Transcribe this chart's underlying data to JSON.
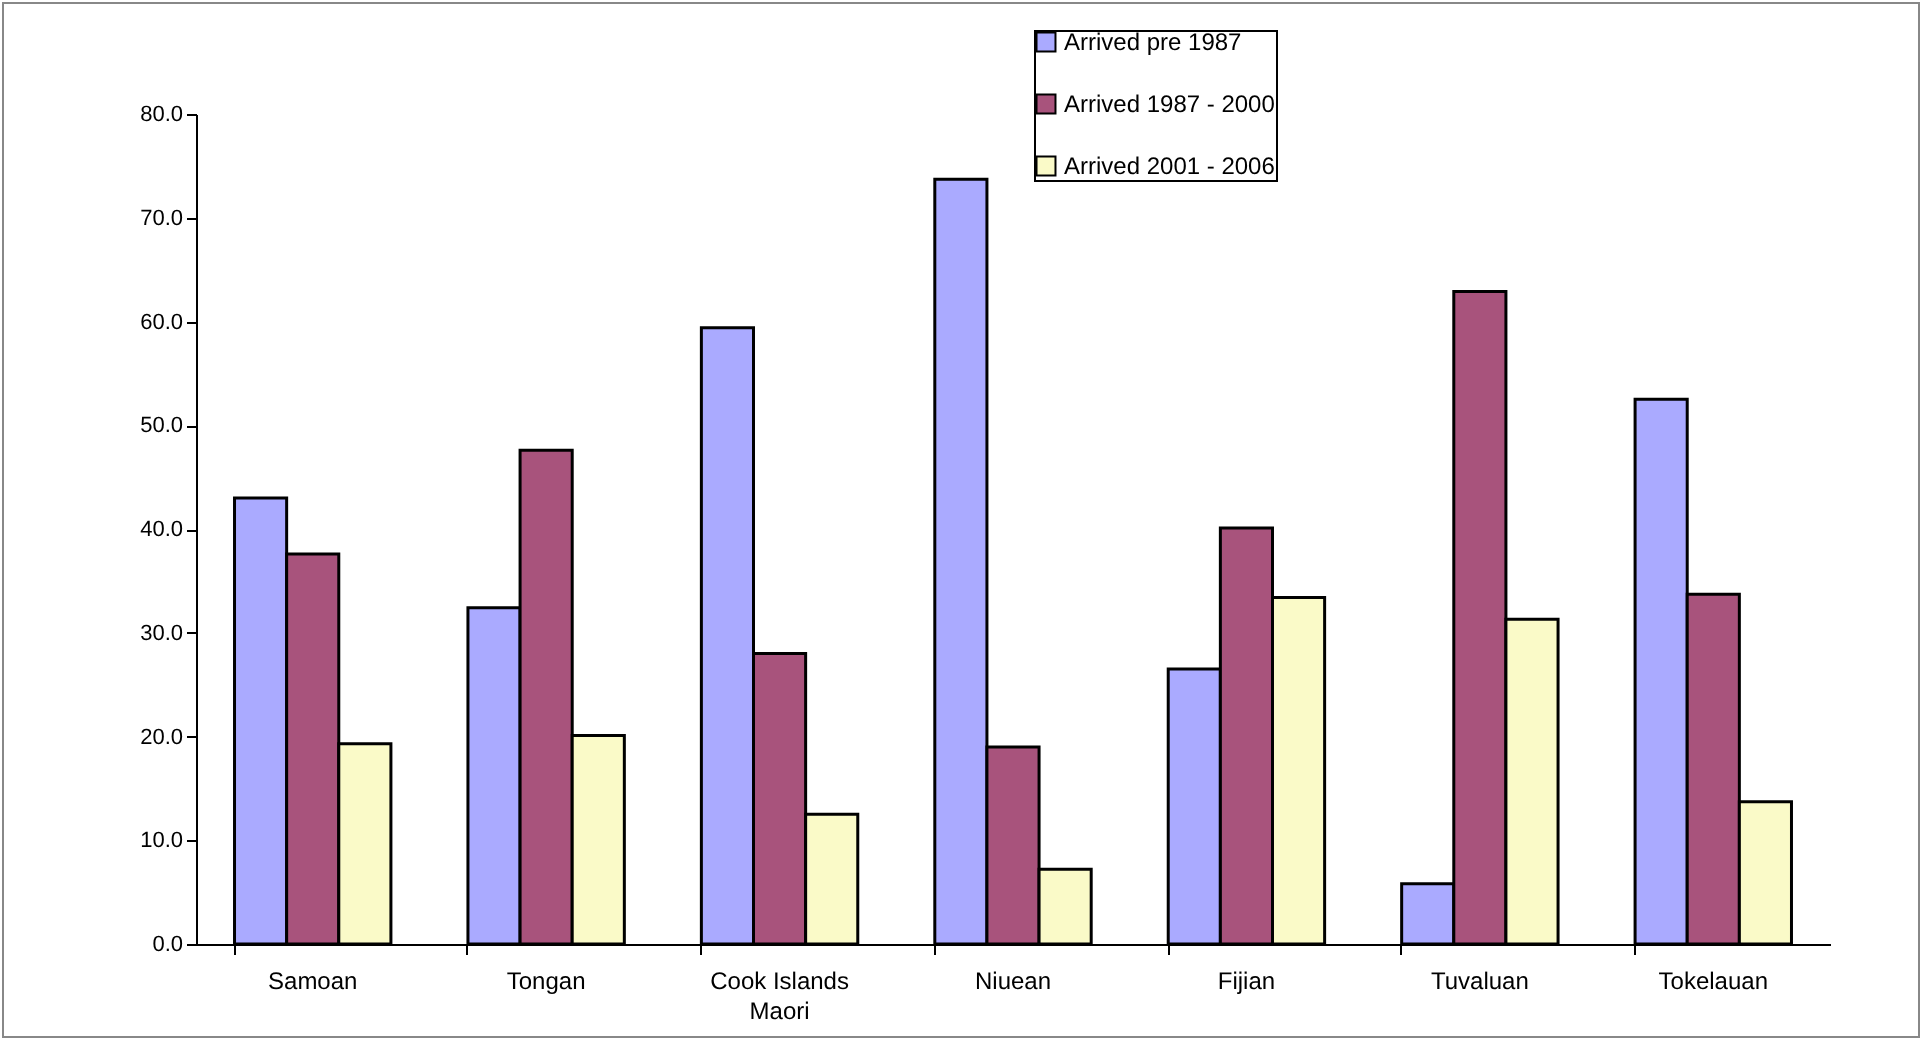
{
  "chart_data": {
    "type": "bar",
    "categories": [
      "Samoan",
      "Tongan",
      "Cook Islands Maori",
      "Niuean",
      "Fijian",
      "Tuvaluan",
      "Tokelauan"
    ],
    "series": [
      {
        "name": "Arrived pre 1987",
        "color": "#aaaaff",
        "values": [
          43.0,
          32.4,
          59.4,
          73.7,
          26.5,
          5.8,
          52.5
        ]
      },
      {
        "name": "Arrived 1987 - 2000",
        "color": "#a8537c",
        "values": [
          37.6,
          47.6,
          28.0,
          19.0,
          40.1,
          62.9,
          33.7
        ]
      },
      {
        "name": "Arrived 2001 - 2006",
        "color": "#fafac8",
        "values": [
          19.3,
          20.1,
          12.5,
          7.2,
          33.4,
          31.3,
          13.7
        ]
      }
    ],
    "ylim": [
      0,
      80
    ],
    "yticks": [
      {
        "value": 0,
        "label": "0.0"
      },
      {
        "value": 10,
        "label": "10.0"
      },
      {
        "value": 20,
        "label": "20.0"
      },
      {
        "value": 30,
        "label": "30.0"
      },
      {
        "value": 40,
        "label": "40.0"
      },
      {
        "value": 50,
        "label": "50.0"
      },
      {
        "value": 60,
        "label": "60.0"
      },
      {
        "value": 70,
        "label": "70.0"
      },
      {
        "value": 80,
        "label": "80.0"
      }
    ],
    "grid": false,
    "legend": "top right"
  }
}
